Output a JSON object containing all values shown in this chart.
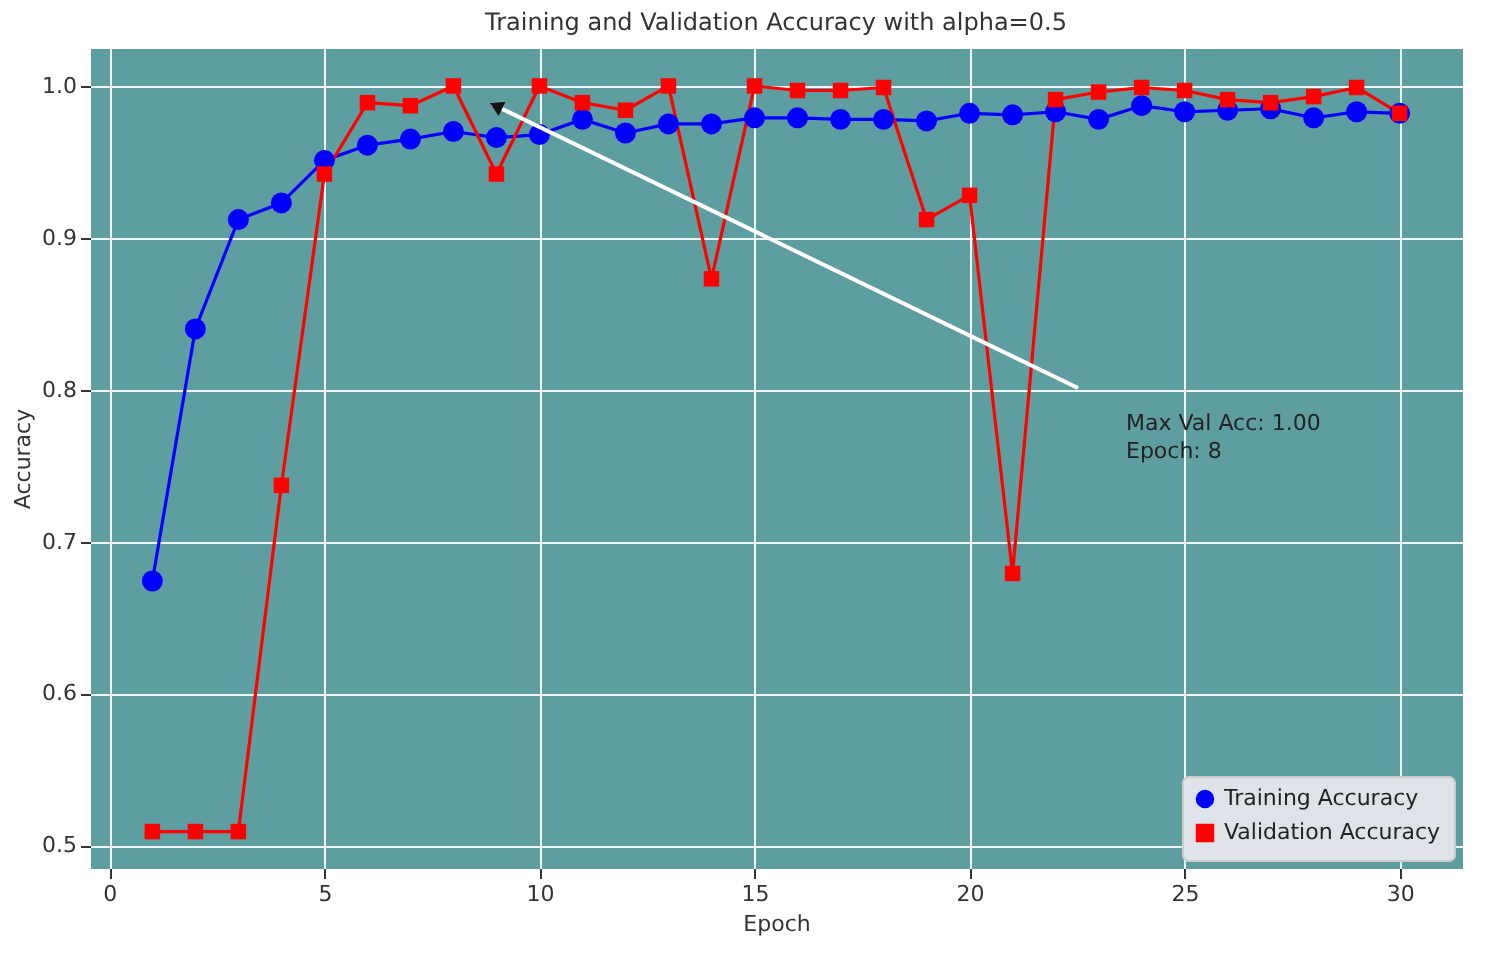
{
  "chart_data": {
    "type": "line",
    "title": "Training and Validation Accuracy with alpha=0.5",
    "xlabel": "Epoch",
    "ylabel": "Accuracy",
    "x": [
      1,
      2,
      3,
      4,
      5,
      6,
      7,
      8,
      9,
      10,
      11,
      12,
      13,
      14,
      15,
      16,
      17,
      18,
      19,
      20,
      21,
      22,
      23,
      24,
      25,
      26,
      27,
      28,
      29,
      30
    ],
    "series": [
      {
        "name": "Training Accuracy",
        "color": "#0000ff",
        "marker": "circle",
        "values": [
          0.674,
          0.84,
          0.912,
          0.923,
          0.951,
          0.961,
          0.965,
          0.97,
          0.966,
          0.968,
          0.978,
          0.969,
          0.975,
          0.975,
          0.979,
          0.979,
          0.978,
          0.978,
          0.977,
          0.982,
          0.981,
          0.983,
          0.978,
          0.987,
          0.983,
          0.984,
          0.985,
          0.979,
          0.983,
          0.982
        ]
      },
      {
        "name": "Validation Accuracy",
        "color": "#ff0000",
        "marker": "square",
        "values": [
          0.509,
          0.509,
          0.509,
          0.737,
          0.942,
          0.989,
          0.987,
          1.0,
          0.942,
          1.0,
          0.989,
          0.984,
          1.0,
          0.873,
          1.0,
          0.997,
          0.997,
          0.999,
          0.912,
          0.928,
          0.679,
          0.991,
          0.996,
          0.999,
          0.997,
          0.991,
          0.989,
          0.993,
          0.999,
          0.982
        ]
      }
    ],
    "xlim": [
      -0.45,
      31.45
    ],
    "ylim": [
      0.485,
      1.025
    ],
    "xticks": [
      0,
      5,
      10,
      15,
      20,
      25,
      30
    ],
    "yticks": [
      {
        "value": 0.5,
        "label": "0.5"
      },
      {
        "value": 0.6,
        "label": "0.6"
      },
      {
        "value": 0.7,
        "label": "0.7"
      },
      {
        "value": 0.8,
        "label": "0.8"
      },
      {
        "value": 0.9,
        "label": "0.9"
      },
      {
        "value": 1.0,
        "label": "1.0"
      }
    ],
    "grid": true,
    "legend": "bottom right",
    "line_style": "solid",
    "annotations": [
      "Max Val Acc: 1.00\nEpoch: 8"
    ]
  }
}
